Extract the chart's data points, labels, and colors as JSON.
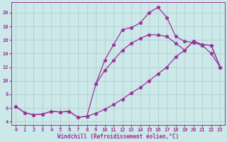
{
  "bg_color": "#cce8e8",
  "grid_color": "#aacccc",
  "line_color": "#993399",
  "xlabel": "Windchill (Refroidissement éolien,°C)",
  "xlim": [
    -0.5,
    23.5
  ],
  "ylim": [
    3.5,
    21.5
  ],
  "yticks": [
    4,
    6,
    8,
    10,
    12,
    14,
    16,
    18,
    20
  ],
  "xticks": [
    0,
    1,
    2,
    3,
    4,
    5,
    6,
    7,
    8,
    9,
    10,
    11,
    12,
    13,
    14,
    15,
    16,
    17,
    18,
    19,
    20,
    21,
    22,
    23
  ],
  "curve1_x": [
    0,
    1,
    2,
    3,
    4,
    5,
    6,
    7,
    8,
    9,
    10,
    11,
    12,
    13,
    14,
    15,
    16,
    17,
    18,
    19,
    20,
    21,
    22,
    23
  ],
  "curve1_y": [
    6.2,
    5.3,
    5.0,
    5.1,
    5.5,
    5.4,
    5.5,
    4.6,
    4.8,
    9.5,
    13.0,
    15.3,
    17.5,
    17.8,
    18.5,
    20.0,
    20.8,
    19.3,
    16.5,
    15.8,
    15.6,
    15.2,
    14.0,
    12.0
  ],
  "curve2_x": [
    0,
    1,
    2,
    3,
    4,
    5,
    6,
    7,
    8,
    9,
    10,
    11,
    12,
    13,
    14,
    15,
    16,
    17,
    18,
    19,
    20,
    21,
    22,
    23
  ],
  "curve2_y": [
    6.2,
    5.3,
    5.0,
    5.1,
    5.5,
    5.4,
    5.5,
    4.6,
    4.8,
    5.2,
    5.8,
    6.5,
    7.3,
    8.2,
    9.0,
    10.0,
    11.0,
    12.0,
    13.5,
    14.5,
    15.8,
    15.3,
    15.2,
    12.0
  ],
  "curve3_x": [
    9,
    10,
    11,
    12,
    13,
    14,
    15,
    16,
    17,
    18,
    19,
    20,
    21,
    22,
    23
  ],
  "curve3_y": [
    9.5,
    11.5,
    13.0,
    14.5,
    15.5,
    16.2,
    16.8,
    16.7,
    16.5,
    15.5,
    14.5,
    15.8,
    15.3,
    15.2,
    12.0
  ]
}
